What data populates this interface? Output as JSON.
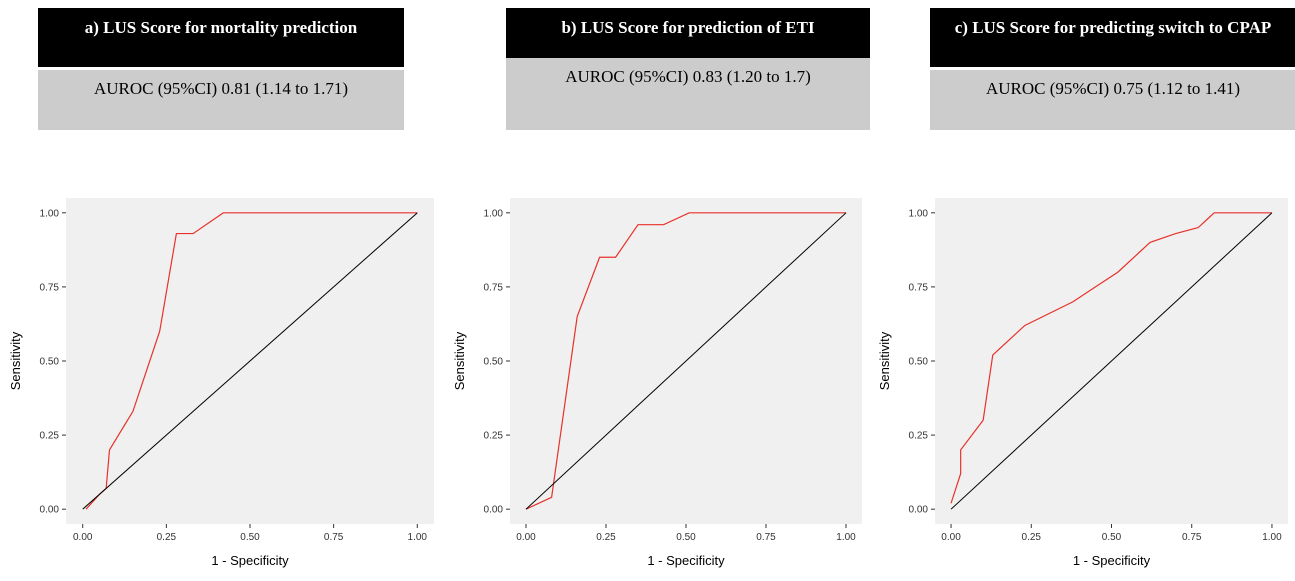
{
  "colors": {
    "panel_background": "#f0f0f0",
    "roc_line": "#e8312a",
    "reference_line": "#000000",
    "title_box": "#000000",
    "auroc_box": "#cccccc"
  },
  "chart_data": [
    {
      "type": "line",
      "title": "a) LUS Score for mortality prediction",
      "subtitle": "AUROC (95%CI) 0.81 (1.14 to 1.71)",
      "xlabel": "1 - Specificity",
      "ylabel": "Sensitivity",
      "xlim": [
        0,
        1
      ],
      "ylim": [
        0,
        1
      ],
      "x_ticks": [
        "0.00",
        "0.25",
        "0.50",
        "0.75",
        "1.00"
      ],
      "y_ticks": [
        "0.00",
        "0.25",
        "0.50",
        "0.75",
        "1.00"
      ],
      "grid": false,
      "series": [
        {
          "x": [
            0.01,
            0.05,
            0.07,
            0.08,
            0.15,
            0.23,
            0.28,
            0.33,
            0.42,
            1.0
          ],
          "y": [
            0.0,
            0.05,
            0.07,
            0.2,
            0.33,
            0.6,
            0.93,
            0.93,
            1.0,
            1.0
          ]
        },
        {
          "x": [
            0,
            1
          ],
          "y": [
            0,
            1
          ]
        }
      ]
    },
    {
      "type": "line",
      "title": "b) LUS Score for prediction  of ETI",
      "subtitle": "AUROC (95%CI) 0.83 (1.20 to 1.7)",
      "xlabel": "1 - Specificity",
      "ylabel": "Sensitivity",
      "xlim": [
        0,
        1
      ],
      "ylim": [
        0,
        1
      ],
      "x_ticks": [
        "0.00",
        "0.25",
        "0.50",
        "0.75",
        "1.00"
      ],
      "y_ticks": [
        "0.00",
        "0.25",
        "0.50",
        "0.75",
        "1.00"
      ],
      "grid": false,
      "series": [
        {
          "x": [
            0.0,
            0.08,
            0.16,
            0.23,
            0.28,
            0.35,
            0.43,
            0.51,
            1.0
          ],
          "y": [
            0.0,
            0.04,
            0.65,
            0.85,
            0.85,
            0.96,
            0.96,
            1.0,
            1.0
          ]
        },
        {
          "x": [
            0,
            1
          ],
          "y": [
            0,
            1
          ]
        }
      ]
    },
    {
      "type": "line",
      "title": "c) LUS Score for predicting  switch to CPAP",
      "subtitle": "AUROC (95%CI) 0.75 (1.12 to 1.41)",
      "xlabel": "1 - Specificity",
      "ylabel": "Sensitivity",
      "xlim": [
        0,
        1
      ],
      "ylim": [
        0,
        1
      ],
      "x_ticks": [
        "0.00",
        "0.25",
        "0.50",
        "0.75",
        "1.00"
      ],
      "y_ticks": [
        "0.00",
        "0.25",
        "0.50",
        "0.75",
        "1.00"
      ],
      "grid": false,
      "series": [
        {
          "x": [
            0.0,
            0.03,
            0.03,
            0.1,
            0.13,
            0.23,
            0.38,
            0.45,
            0.52,
            0.62,
            0.7,
            0.77,
            0.8,
            0.82,
            1.0
          ],
          "y": [
            0.02,
            0.12,
            0.2,
            0.3,
            0.52,
            0.62,
            0.7,
            0.75,
            0.8,
            0.9,
            0.93,
            0.95,
            0.98,
            1.0,
            1.0
          ]
        },
        {
          "x": [
            0,
            1
          ],
          "y": [
            0,
            1
          ]
        }
      ]
    }
  ]
}
